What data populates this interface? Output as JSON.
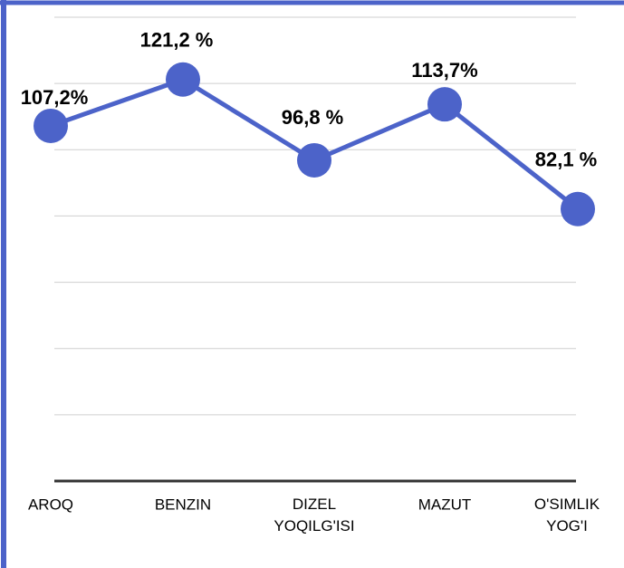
{
  "chart_data": {
    "type": "line",
    "categories": [
      "AROQ",
      "BENZIN",
      "DIZEL YOQILG'ISI",
      "MAZUT",
      "O'SIMLIK YOG'I"
    ],
    "values": [
      107.2,
      121.2,
      96.8,
      113.7,
      82.1
    ],
    "value_labels": [
      "107,2%",
      "121,2 %",
      "96,8 %",
      "113,7%",
      "82,1 %"
    ],
    "color": "#4c63c9",
    "ylim": [
      0,
      140
    ],
    "yticks": [
      0,
      20,
      40,
      60,
      80,
      100,
      120,
      140
    ],
    "grid": true
  }
}
